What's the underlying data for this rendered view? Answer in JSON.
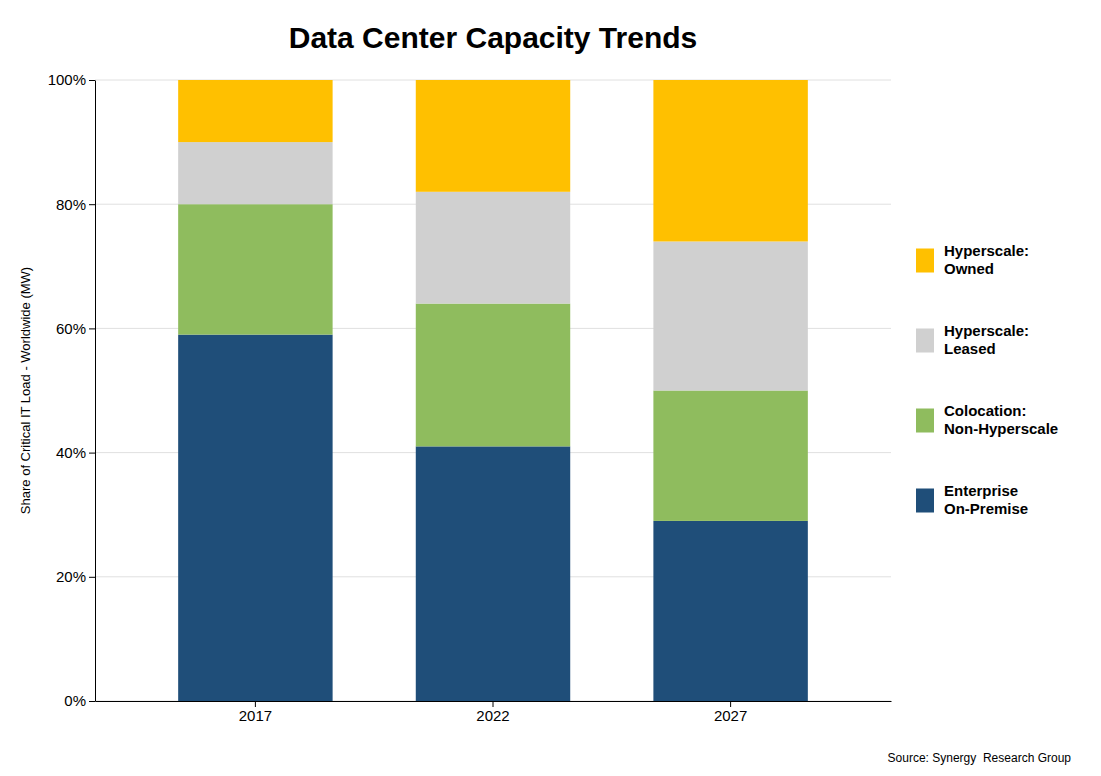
{
  "chart_data": {
    "type": "bar",
    "stacked": true,
    "title": "Data Center Capacity Trends",
    "ylabel": "Share of Critical IT Load - Worldwide (MW)",
    "source": "Source: Synergy  Research Group",
    "categories": [
      "2017",
      "2022",
      "2027"
    ],
    "series": [
      {
        "name": "Enterprise\nOn-Premise",
        "color": "#1f4e79",
        "values": [
          59,
          41,
          29
        ]
      },
      {
        "name": "Colocation:\nNon-Hyperscale",
        "color": "#8fbc5e",
        "values": [
          21,
          23,
          21
        ]
      },
      {
        "name": "Hyperscale:\nLeased",
        "color": "#d0d0d0",
        "values": [
          10,
          18,
          24
        ]
      },
      {
        "name": "Hyperscale:\nOwned",
        "color": "#ffc000",
        "values": [
          10,
          18,
          26
        ]
      }
    ],
    "ylim": [
      0,
      100
    ],
    "yticks": [
      {
        "value": 0,
        "label": "0%"
      },
      {
        "value": 20,
        "label": "20%"
      },
      {
        "value": 40,
        "label": "40%"
      },
      {
        "value": 60,
        "label": "60%"
      },
      {
        "value": 80,
        "label": "80%"
      },
      {
        "value": 100,
        "label": "100%"
      }
    ],
    "grid": true,
    "legend": "right"
  }
}
